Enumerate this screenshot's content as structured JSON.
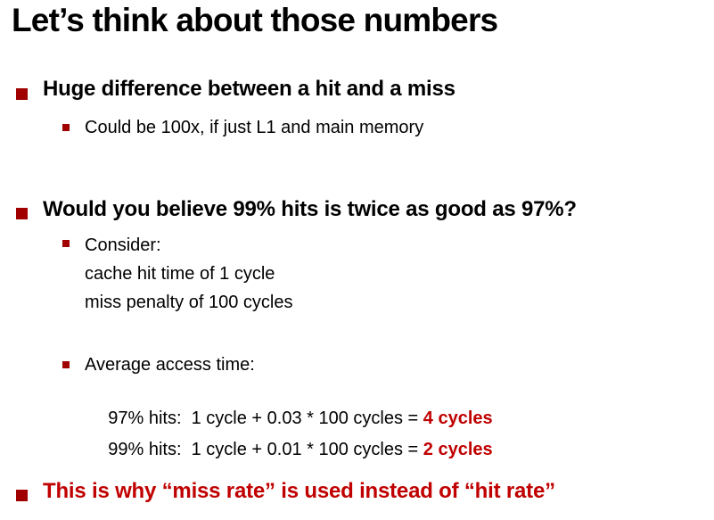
{
  "slide": {
    "title": "Let’s think about those numbers",
    "colors": {
      "background": "#FFFFFF",
      "text": "#000000",
      "bullet_square": "#A00000",
      "emphasis_red": "#C00000"
    }
  },
  "bullets": {
    "huge_difference": "Huge difference between a hit and a miss",
    "could_be": "Could be 100x, if just L1 and main memory",
    "would_you_believe": "Would you believe 99% hits is twice as good as 97%?",
    "consider": {
      "label": "Consider:",
      "line1": "cache hit time of 1 cycle",
      "line2": "miss penalty of 100 cycles"
    },
    "average_access": {
      "label": "Average access time:",
      "calc_97": {
        "expression": "97% hits:  1 cycle + 0.03 * 100 cycles = ",
        "result": "4 cycles"
      },
      "calc_99": {
        "expression": "99% hits:  1 cycle + 0.01 * 100 cycles = ",
        "result": "2 cycles"
      }
    },
    "conclusion": "This is why “miss rate” is used instead of “hit rate”"
  }
}
